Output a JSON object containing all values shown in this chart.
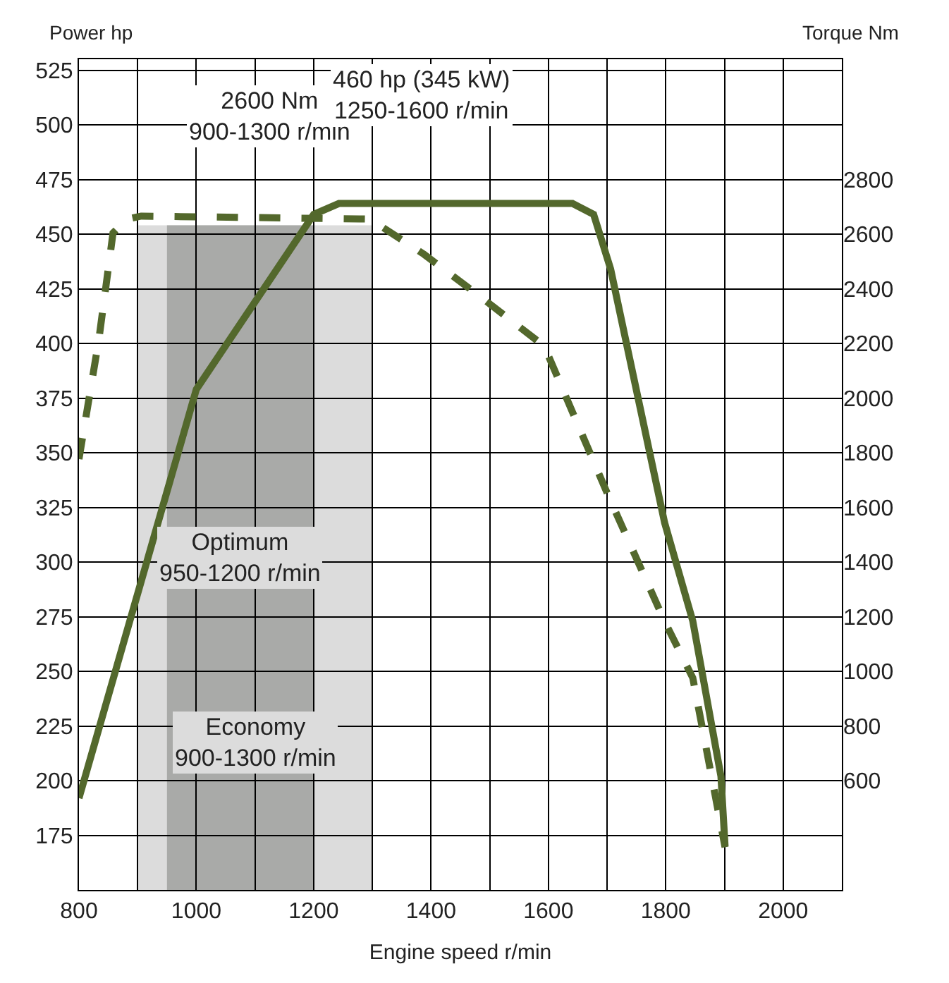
{
  "chart_data": {
    "type": "line",
    "xlabel": "Engine speed r/min",
    "ylabel": "Power hp",
    "y2label": "Torque Nm",
    "xlim": [
      800,
      2100
    ],
    "xticks": [
      800,
      {
        "value": 900,
        "label": null
      },
      1000,
      {
        "value": 1100,
        "label": null
      },
      1200,
      {
        "value": 1300,
        "label": null
      },
      1400,
      {
        "value": 1500,
        "label": null
      },
      1600,
      {
        "value": 1700,
        "label": null
      },
      1800,
      {
        "value": 1900,
        "label": null
      },
      2000,
      {
        "value": 2100,
        "label": null
      }
    ],
    "ylim": [
      150,
      530
    ],
    "yticks": [
      175,
      200,
      225,
      250,
      275,
      300,
      325,
      350,
      375,
      400,
      425,
      450,
      475,
      500,
      525
    ],
    "y2lim": [
      200,
      3240
    ],
    "y2ticks": [
      600,
      800,
      1000,
      1200,
      1400,
      1600,
      1800,
      2000,
      2200,
      2400,
      2600,
      2800
    ],
    "grid": true,
    "legend": false,
    "marker": "none",
    "series": [
      {
        "color": "#53682c",
        "line_style": "solid",
        "x": [
          800,
          1000,
          1200,
          1243,
          1641,
          1677,
          1706,
          1798,
          1846,
          1894,
          1901
        ],
        "values": [
          192,
          379,
          459,
          464,
          464,
          459,
          434,
          318,
          273,
          202,
          170
        ]
      },
      {
        "color": "#53682c",
        "line_style": "dashed",
        "axis": "y2",
        "x": [
          800,
          834,
          858,
          882,
          906,
          1296,
          1388,
          1484,
          1593,
          1629,
          1701,
          1798,
          1846,
          1901
        ],
        "values": [
          1777,
          2216,
          2604,
          2655,
          2666,
          2655,
          2526,
          2371,
          2190,
          2009,
          1648,
          1183,
          976,
          356
        ]
      }
    ],
    "bands": [
      {
        "axis": "x",
        "from": 900,
        "to": 1300,
        "label": "Economy\n900-1300 r/min",
        "color": "#dcdcdc"
      },
      {
        "axis": "x",
        "from": 950,
        "to": 1200,
        "label": "Optimum\n950-1200 r/min",
        "color": "#a9aaa8"
      }
    ],
    "annotations": [
      "2600 Nm\n900-1300 r/min",
      "460 hp (345 kW)\n1250-1600 r/min"
    ]
  }
}
